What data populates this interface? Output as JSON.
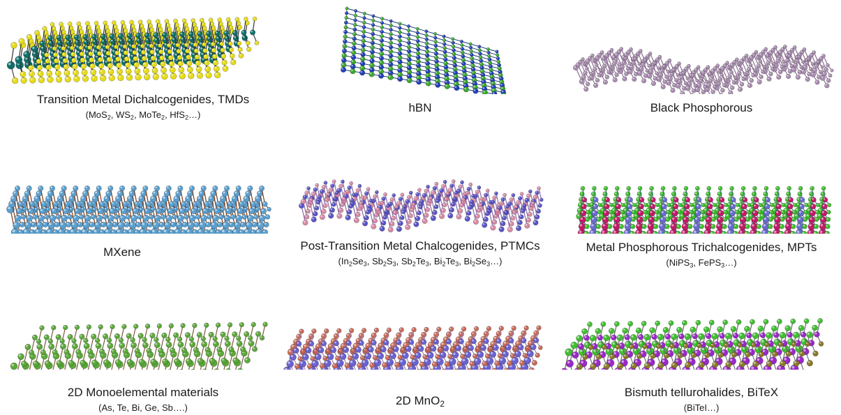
{
  "materials": [
    {
      "name": "Transition Metal Dichalcogenides, TMDs",
      "examples": "(MoS<sub>2</sub>, WS<sub>2</sub>, MoTe<sub>2</sub>, HfS<sub>2</sub>…)",
      "colors": [
        "#0f6f6b",
        "#e6dc19"
      ]
    },
    {
      "name": "hBN",
      "examples": "",
      "colors": [
        "#2340b8",
        "#3aa82e"
      ]
    },
    {
      "name": "Black Phosphorous",
      "examples": "",
      "colors": [
        "#a98db0",
        "#a98db0"
      ]
    },
    {
      "name": "MXene",
      "examples": "",
      "colors": [
        "#5b9fcf",
        "#7a3a16"
      ]
    },
    {
      "name": "Post-Transition Metal Chalcogenides, PTMCs",
      "examples": "(In<sub>2</sub>Se<sub>3</sub>, Sb<sub>2</sub>S<sub>3</sub>, Sb<sub>2</sub>Te<sub>3</sub>, Bi<sub>2</sub>Te<sub>3</sub>, Bi<sub>2</sub>Se<sub>3</sub>…)",
      "colors": [
        "#5a55c8",
        "#d98aa8"
      ]
    },
    {
      "name": "Metal Phosphorous Trichalcogenides, MPTs",
      "examples": "(NiPS<sub>3</sub>, FePS<sub>3</sub>…)",
      "colors": [
        "#3fbf2f",
        "#c21a6a"
      ]
    },
    {
      "name": "2D Monoelemental materials",
      "examples": "(As, Te, Bi, Ge, Sb….)",
      "colors": [
        "#5ca83a",
        "#5ca83a"
      ]
    },
    {
      "name": "2D MnO<sub>2</sub>",
      "examples": "",
      "colors": [
        "#6a62d0",
        "#c86a5a"
      ]
    },
    {
      "name": "Bismuth tellurohalides, BiTeX",
      "examples": "(BiTeI…)",
      "colors": [
        "#9a28c8",
        "#3fbf2f"
      ]
    }
  ]
}
